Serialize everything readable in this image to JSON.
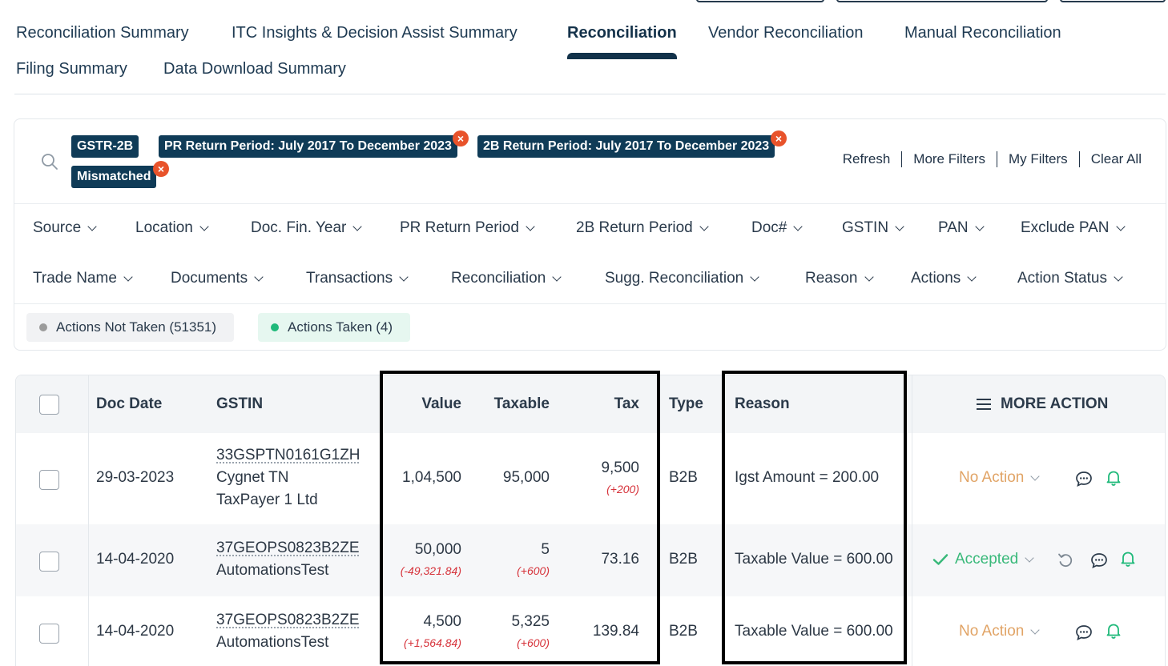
{
  "tabs": [
    {
      "label": "Reconciliation Summary",
      "active": false
    },
    {
      "label": "ITC Insights & Decision Assist Summary",
      "active": false
    },
    {
      "label": "Reconciliation",
      "active": true
    },
    {
      "label": "Vendor Reconciliation",
      "active": false
    },
    {
      "label": "Manual Reconciliation",
      "active": false
    },
    {
      "label": "Filing Summary",
      "active": false
    },
    {
      "label": "Data Download Summary",
      "active": false
    }
  ],
  "filters": {
    "chips": [
      {
        "label": "GSTR-2B",
        "removable": false
      },
      {
        "label": "PR Return Period: July 2017 To December 2023",
        "removable": true
      },
      {
        "label": "2B Return Period: July 2017 To December 2023",
        "removable": true
      },
      {
        "label": "Mismatched",
        "removable": true
      }
    ],
    "links": [
      "Refresh",
      "More Filters",
      "My Filters",
      "Clear All"
    ],
    "dropdowns_row1": [
      "Source",
      "Location",
      "Doc. Fin. Year",
      "PR Return Period",
      "2B Return Period",
      "Doc#",
      "GSTIN",
      "PAN",
      "Exclude PAN"
    ],
    "dropdowns_row2": [
      "Trade Name",
      "Documents",
      "Transactions",
      "Reconciliation",
      "Sugg. Reconciliation",
      "Reason",
      "Actions",
      "Action Status"
    ],
    "status": [
      {
        "label": "Actions Not Taken (51351)",
        "dot_color": "#9b9b9b",
        "bg": "#f1f2f4"
      },
      {
        "label": "Actions Taken (4)",
        "dot_color": "#1fb97a",
        "bg": "#e6f7f0"
      }
    ]
  },
  "table": {
    "headers": {
      "doc_date": "Doc Date",
      "gstin": "GSTIN",
      "value": "Value",
      "taxable": "Taxable",
      "tax": "Tax",
      "type": "Type",
      "reason": "Reason",
      "more_action": "MORE ACTION"
    },
    "rows": [
      {
        "doc_date": "29-03-2023",
        "gstin": "33GSPTN0161G1ZH",
        "name_line1": "Cygnet TN",
        "name_line2": "TaxPayer 1 Ltd",
        "value": "1,04,500",
        "value_diff": "",
        "taxable": "95,000",
        "taxable_diff": "",
        "tax": "9,500",
        "tax_diff": "(+200)",
        "type": "B2B",
        "reason": "Igst Amount = 200.00",
        "action": "No Action",
        "action_status": "pending"
      },
      {
        "doc_date": "14-04-2020",
        "gstin": "37GEOPS0823B2ZE",
        "name_line1": "AutomationsTest",
        "name_line2": "",
        "value": "50,000",
        "value_diff": "(-49,321.84)",
        "taxable": "5",
        "taxable_diff": "(+600)",
        "tax": "73.16",
        "tax_diff": "",
        "type": "B2B",
        "reason": "Taxable Value = 600.00",
        "action": "Accepted",
        "action_status": "accepted"
      },
      {
        "doc_date": "14-04-2020",
        "gstin": "37GEOPS0823B2ZE",
        "name_line1": "AutomationsTest",
        "name_line2": "",
        "value": "4,500",
        "value_diff": "(+1,564.84)",
        "taxable": "5,325",
        "taxable_diff": "(+600)",
        "tax": "139.84",
        "tax_diff": "",
        "type": "B2B",
        "reason": "Taxable Value = 600.00",
        "action": "No Action",
        "action_status": "pending"
      }
    ]
  },
  "colors": {
    "brand_navy": "#0f3b57",
    "chip_close": "#e8532b",
    "no_action": "#e1a466",
    "accepted": "#39b97a",
    "negative_diff": "#d6323a"
  }
}
